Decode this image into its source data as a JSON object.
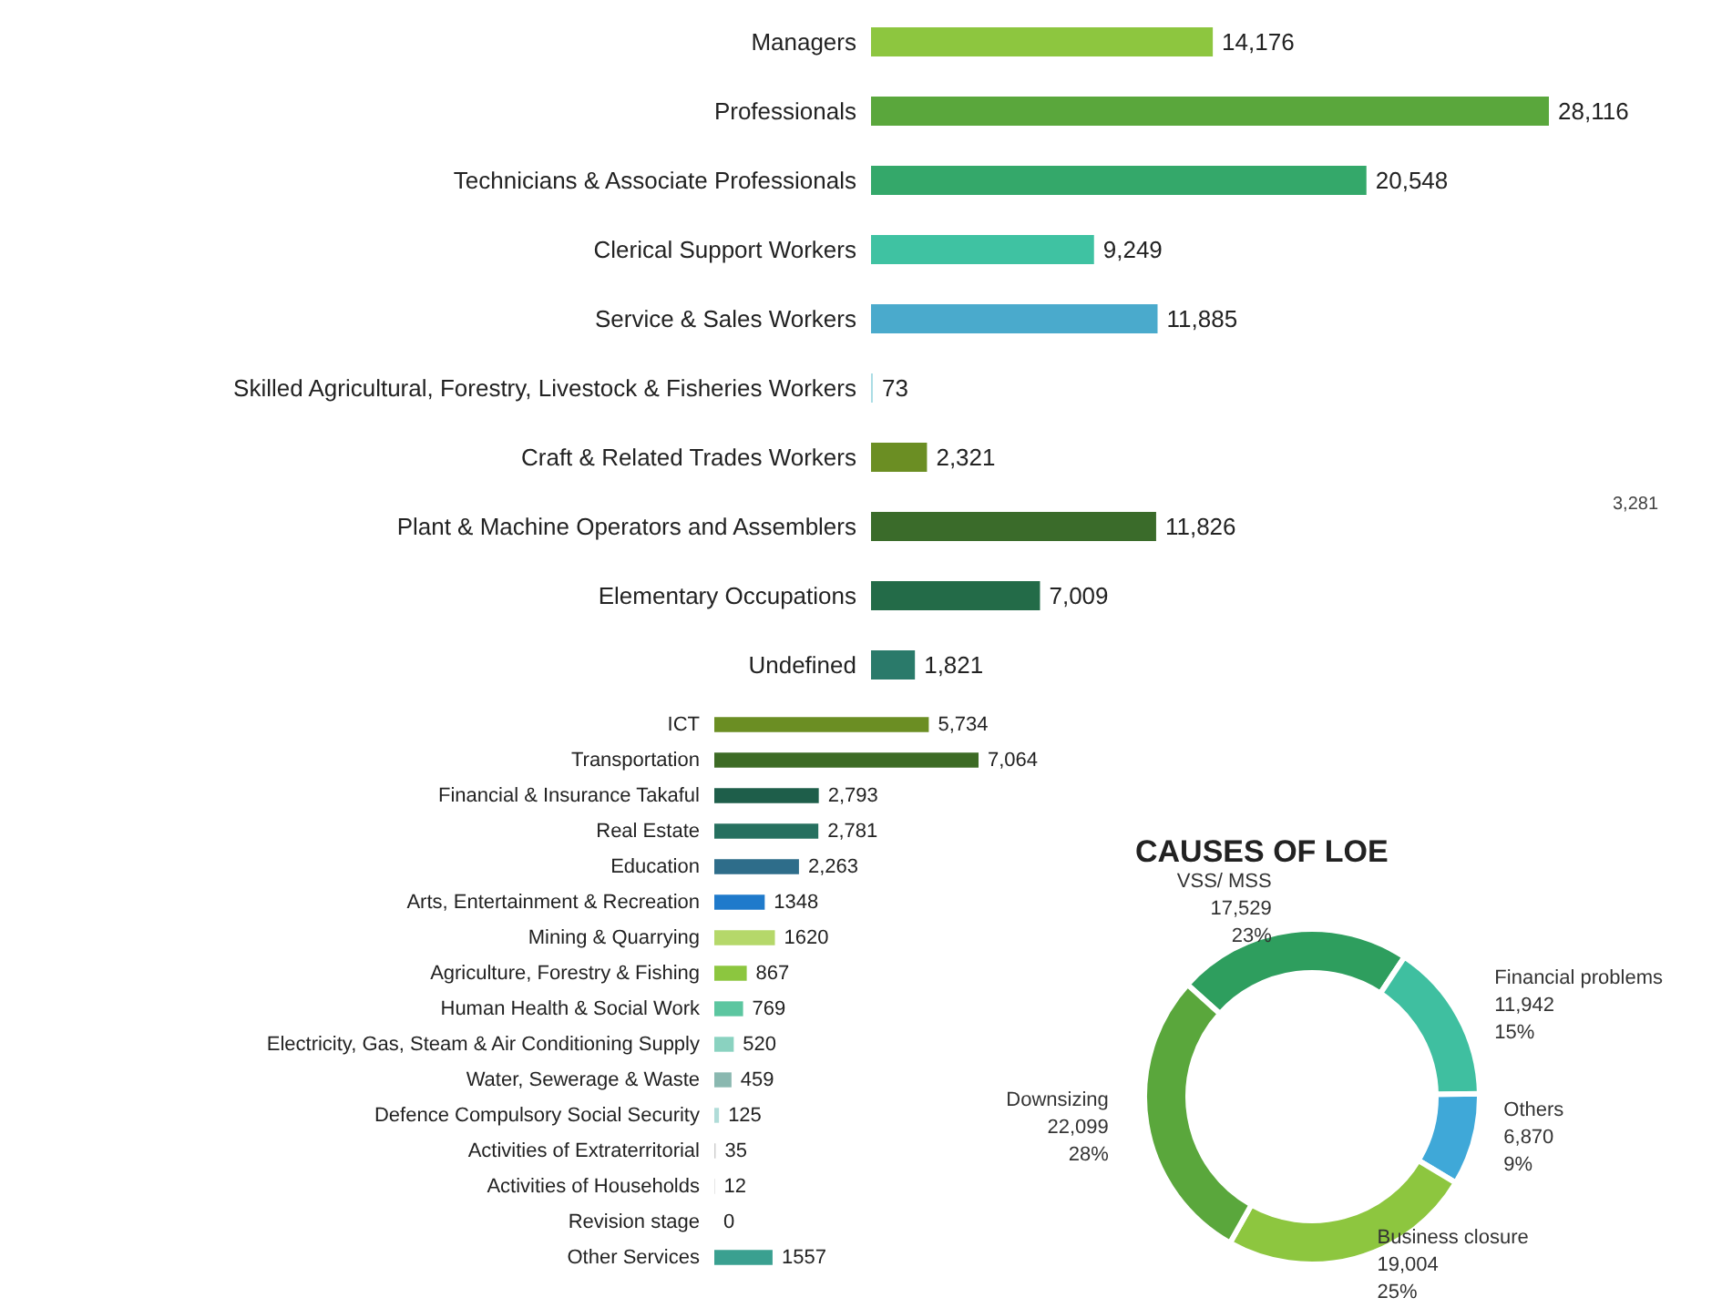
{
  "chart_data": [
    {
      "type": "bar",
      "orientation": "horizontal",
      "tick_labels": "y",
      "categories": [
        "Managers",
        "Professionals",
        "Technicians & Associate Professionals",
        "Clerical Support Workers",
        "Service & Sales Workers",
        "Skilled Agricultural, Forestry, Livestock & Fisheries Workers",
        "Craft & Related Trades Workers",
        "Plant & Machine Operators and Assemblers",
        "Elementary Occupations",
        "Undefined"
      ],
      "values": [
        14176,
        28116,
        20548,
        9249,
        11885,
        73,
        2321,
        11826,
        7009,
        1821
      ],
      "value_labels": [
        "14,176",
        "28,116",
        "20,548",
        "9,249",
        "11,885",
        "73",
        "2,321",
        "11,826",
        "7,009",
        "1,821"
      ],
      "colors": [
        "#8dc63f",
        "#5aa73c",
        "#34a86a",
        "#3fc2a2",
        "#4aaacc",
        "#a8dce4",
        "#6b8e23",
        "#3a6b2a",
        "#236b48",
        "#2a7a6a"
      ],
      "annotations": [
        "3,281"
      ]
    },
    {
      "type": "bar",
      "orientation": "horizontal",
      "tick_labels": "y",
      "categories": [
        "ICT",
        "Transportation",
        "Financial & Insurance Takaful",
        "Real Estate",
        "Education",
        "Arts, Entertainment & Recreation",
        "Mining & Quarrying",
        "Agriculture, Forestry & Fishing",
        "Human Health & Social Work",
        "Electricity, Gas, Steam & Air Conditioning Supply",
        "Water, Sewerage & Waste",
        "Defence Compulsory Social Security",
        "Activities of Extraterritorial",
        "Activities of Households",
        "Revision stage",
        "Other Services"
      ],
      "values": [
        5734,
        7064,
        2793,
        2781,
        2263,
        1348,
        1620,
        867,
        769,
        520,
        459,
        125,
        35,
        12,
        0,
        1557
      ],
      "value_labels": [
        "5,734",
        "7,064",
        "2,793",
        "2,781",
        "2,263",
        "1348",
        "1620",
        "867",
        "769",
        "520",
        "459",
        "125",
        "35",
        "12",
        "0",
        "1557"
      ],
      "colors": [
        "#6b8e23",
        "#3d6b25",
        "#1e5e4a",
        "#26705f",
        "#2e6d8a",
        "#1f7acb",
        "#b5d86a",
        "#8cc63f",
        "#5cc6a0",
        "#8ad2c0",
        "#8ab8b0",
        "#b0dcd8",
        "#cccccc",
        "#cccccc",
        "#cccccc",
        "#3aa090"
      ]
    },
    {
      "type": "donut",
      "title": "CAUSES OF LOE",
      "categories": [
        "VSS/ MSS",
        "Financial problems",
        "Others",
        "Business closure",
        "Downsizing"
      ],
      "values": [
        17529,
        11942,
        6870,
        19004,
        22099
      ],
      "value_labels": [
        "17,529\n23%",
        "11,942\n15%",
        "6,870\n9%",
        "19,004\n25%",
        "22,099\n28%"
      ],
      "colors": [
        "#2e9e5e",
        "#3fbfa0",
        "#3fa8d8",
        "#8dc63f",
        "#5aa73c"
      ]
    }
  ]
}
